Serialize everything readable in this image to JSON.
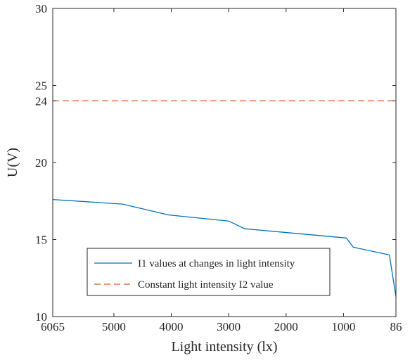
{
  "chart_data": {
    "type": "line",
    "xlabel": "Light intensity (lx)",
    "ylabel": "U(V)",
    "x_reversed": true,
    "xlim": [
      6065,
      86
    ],
    "ylim": [
      10,
      30
    ],
    "x_ticks": [
      6065,
      5000,
      4000,
      3000,
      2000,
      1000,
      86
    ],
    "x_tick_labels": [
      "6065",
      "5000",
      "4000",
      "3000",
      "2000",
      "1000",
      "86"
    ],
    "y_ticks": [
      10,
      15,
      20,
      24,
      25,
      30
    ],
    "y_tick_labels": [
      "10",
      "15",
      "20",
      "24",
      "25",
      "30"
    ],
    "grid": false,
    "legend_position": "lower-left",
    "series": [
      {
        "name": "I1 values at changes in light intensity",
        "style": "solid",
        "color": "#0072BD",
        "x": [
          6065,
          4850,
          4050,
          3000,
          2720,
          950,
          830,
          200,
          86
        ],
        "y": [
          17.6,
          17.3,
          16.6,
          16.2,
          15.7,
          15.1,
          14.5,
          14.0,
          11.3
        ]
      },
      {
        "name": "Constant light intensity I2 value",
        "style": "dashed",
        "color": "#D95319",
        "x": [
          6065,
          86
        ],
        "y": [
          24,
          24
        ]
      }
    ]
  }
}
